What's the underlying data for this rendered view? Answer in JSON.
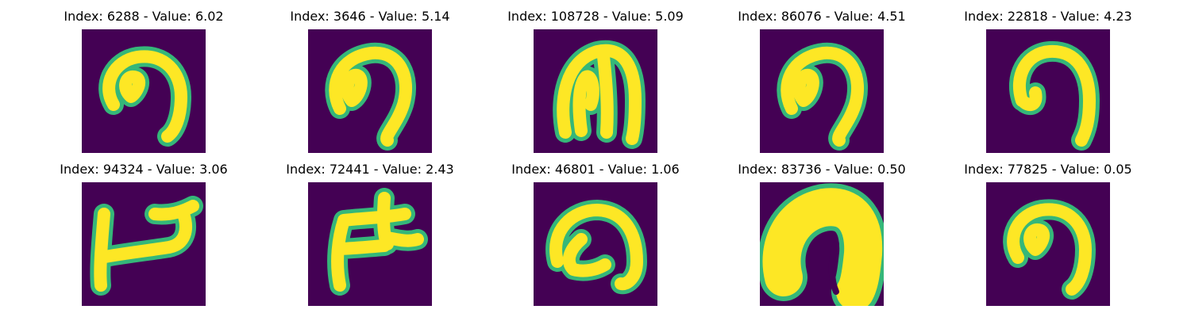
{
  "chart_data": {
    "type": "image-grid",
    "title": "",
    "rows": 2,
    "cols": 5,
    "panels": [
      {
        "index": 6288,
        "value": "6.02",
        "title": "Index: 6288 - Value: 6.02",
        "glyph": "cursive-loop-hook"
      },
      {
        "index": 3646,
        "value": "5.14",
        "title": "Index: 3646 - Value: 5.14",
        "glyph": "cursive-loop-tail"
      },
      {
        "index": 108728,
        "value": "5.09",
        "title": "Index: 108728 - Value: 5.09",
        "glyph": "arch-loop"
      },
      {
        "index": 86076,
        "value": "4.51",
        "title": "Index: 86076 - Value: 4.51",
        "glyph": "cursive-loop-tail"
      },
      {
        "index": 22818,
        "value": "4.23",
        "title": "Index: 22818 - Value: 4.23",
        "glyph": "arch-hook"
      },
      {
        "index": 94324,
        "value": "3.06",
        "title": "Index: 94324 - Value: 3.06",
        "glyph": "zigzag-stroke"
      },
      {
        "index": 72441,
        "value": "2.43",
        "title": "Index: 72441 - Value: 2.43",
        "glyph": "branch-stroke"
      },
      {
        "index": 46801,
        "value": "1.06",
        "title": "Index: 46801 - Value: 1.06",
        "glyph": "open-loop"
      },
      {
        "index": 83736,
        "value": "0.50",
        "title": "Index: 83736 - Value: 0.50",
        "glyph": "filled-blob"
      },
      {
        "index": 77825,
        "value": "0.05",
        "title": "Index: 77825 - Value: 0.05",
        "glyph": "cursive-loop-hook"
      }
    ],
    "colormap": {
      "background": "#440154",
      "edge": "#35b779",
      "stroke": "#fde725"
    }
  }
}
